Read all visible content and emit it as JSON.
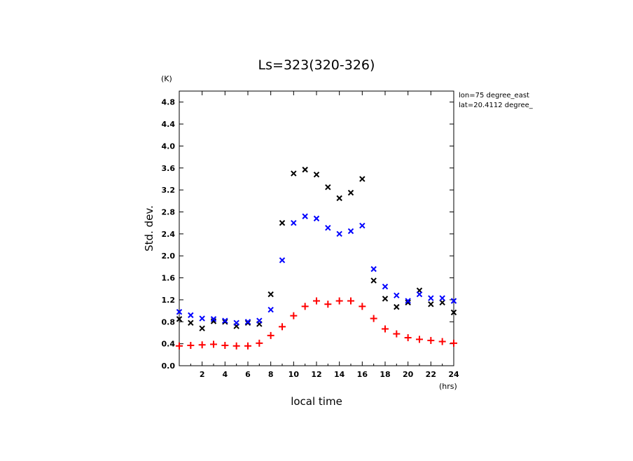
{
  "chart_data": {
    "type": "scatter",
    "title": "Ls=323(320-326)",
    "xlabel": "local time",
    "ylabel": "Std. dev.",
    "x_unit": "(hrs)",
    "y_unit": "(K)",
    "annotations": [
      "lon=75 degree_east",
      "lat=20.4112 degree_"
    ],
    "xlim": [
      0,
      24
    ],
    "ylim": [
      0,
      5.0
    ],
    "x_ticks": [
      2,
      4,
      6,
      8,
      10,
      12,
      14,
      16,
      18,
      20,
      22,
      24
    ],
    "y_ticks": [
      0.0,
      0.4,
      0.8,
      1.2,
      1.6,
      2.0,
      2.4,
      2.8,
      3.2,
      3.6,
      4.0,
      4.4,
      4.8
    ],
    "grid": false,
    "x": [
      0,
      1,
      2,
      3,
      4,
      5,
      6,
      7,
      8,
      9,
      10,
      11,
      12,
      13,
      14,
      15,
      16,
      17,
      18,
      19,
      20,
      21,
      22,
      23,
      24
    ],
    "series": [
      {
        "marker": "x",
        "color": "#000000",
        "values": [
          0.85,
          0.78,
          0.68,
          0.81,
          0.8,
          0.72,
          0.78,
          0.76,
          1.3,
          2.6,
          3.5,
          3.57,
          3.48,
          3.25,
          3.05,
          3.15,
          3.4,
          1.55,
          1.22,
          1.07,
          1.15,
          1.37,
          1.12,
          1.15,
          0.97
        ]
      },
      {
        "marker": "x",
        "color": "#0000ff",
        "values": [
          0.98,
          0.92,
          0.86,
          0.85,
          0.82,
          0.78,
          0.8,
          0.82,
          1.02,
          1.92,
          2.6,
          2.72,
          2.68,
          2.51,
          2.4,
          2.45,
          2.55,
          1.76,
          1.44,
          1.28,
          1.18,
          1.3,
          1.23,
          1.23,
          1.18
        ]
      },
      {
        "marker": "+",
        "color": "#ff0000",
        "values": [
          0.36,
          0.37,
          0.38,
          0.39,
          0.37,
          0.36,
          0.36,
          0.41,
          0.55,
          0.71,
          0.91,
          1.08,
          1.18,
          1.12,
          1.18,
          1.18,
          1.08,
          0.86,
          0.67,
          0.58,
          0.51,
          0.48,
          0.46,
          0.44,
          0.41
        ]
      }
    ]
  }
}
